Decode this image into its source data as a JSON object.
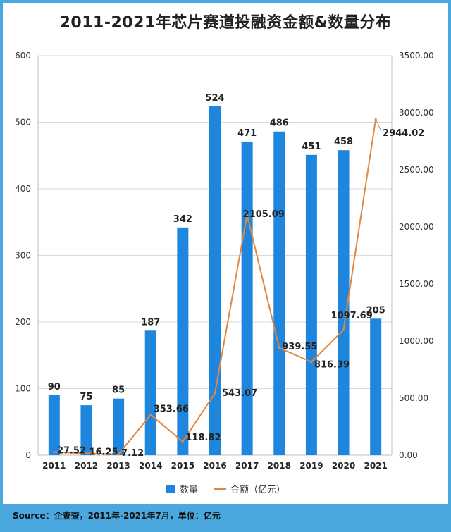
{
  "colors": {
    "bar": "#1f86dd",
    "line": "#e2873f",
    "frame": "#4aa8df"
  },
  "chart_data": {
    "type": "bar+line",
    "title": "2011-2021年芯片赛道投融资金额&数量分布",
    "categories": [
      "2011",
      "2012",
      "2013",
      "2014",
      "2015",
      "2016",
      "2017",
      "2018",
      "2019",
      "2020",
      "2021"
    ],
    "series": [
      {
        "name": "数量",
        "type": "bar",
        "axis": "left",
        "values": [
          90,
          75,
          85,
          187,
          342,
          524,
          471,
          486,
          451,
          458,
          205
        ],
        "labels": [
          "90",
          "75",
          "85",
          "187",
          "342",
          "524",
          "471",
          "486",
          "451",
          "458",
          "205"
        ]
      },
      {
        "name": "金额（亿元）",
        "type": "line",
        "axis": "right",
        "values": [
          27.52,
          16.25,
          7.12,
          353.66,
          118.82,
          543.07,
          2105.09,
          939.55,
          816.39,
          1097.69,
          2944.02
        ],
        "labels": [
          "27.52",
          "16.25",
          "7.12",
          "353.66",
          "118.82",
          "543.07",
          "2105.09",
          "939.55",
          "816.39",
          "1097.69",
          "2944.02"
        ]
      }
    ],
    "y_left": {
      "min": 0,
      "max": 600,
      "ticks": [
        "0",
        "100",
        "200",
        "300",
        "400",
        "500",
        "600"
      ]
    },
    "y_right": {
      "min": 0,
      "max": 3500,
      "ticks": [
        "0.00",
        "500.00",
        "1000.00",
        "1500.00",
        "2000.00",
        "2500.00",
        "3000.00",
        "3500.00"
      ]
    },
    "grid": true,
    "legend": "bottom-center"
  },
  "legend": {
    "bar_label": "数量",
    "line_label": "金额（亿元）"
  },
  "source": "Source：企查查，2011年-2021年7月，单位：亿元"
}
